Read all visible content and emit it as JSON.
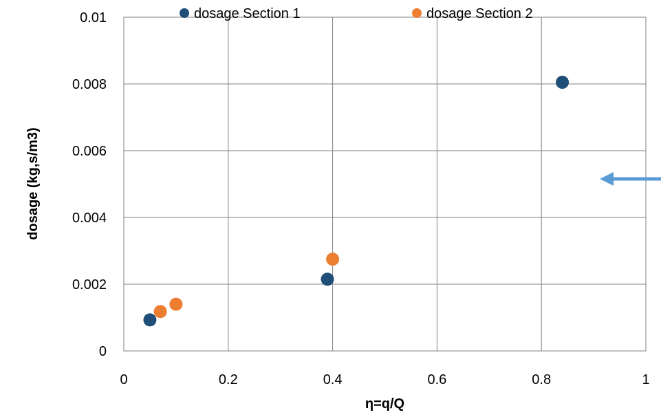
{
  "chart_data": {
    "type": "scatter",
    "title": "",
    "xlabel": "η=q/Q",
    "ylabel": "dosage (kg,s/m3)",
    "xlim": [
      0,
      1
    ],
    "ylim": [
      0,
      0.01
    ],
    "x_ticks": [
      "0",
      "0.2",
      "0.4",
      "0.6",
      "0.8",
      "1"
    ],
    "y_ticks": [
      "0",
      "0.002",
      "0.004",
      "0.006",
      "0.008",
      "0.01"
    ],
    "grid": true,
    "legend_position": "top",
    "series": [
      {
        "name": "dosage Section 1",
        "color": "#1f4e79",
        "points": [
          {
            "x": 0.05,
            "y": 0.00093
          },
          {
            "x": 0.39,
            "y": 0.00215
          },
          {
            "x": 0.84,
            "y": 0.00805
          }
        ]
      },
      {
        "name": "dosage Section 2",
        "color": "#ed7d31",
        "points": [
          {
            "x": 0.07,
            "y": 0.00118
          },
          {
            "x": 0.1,
            "y": 0.0014
          },
          {
            "x": 0.4,
            "y": 0.00275
          }
        ]
      }
    ]
  },
  "annotations": {
    "arrow_color": "#5b9bd5"
  }
}
